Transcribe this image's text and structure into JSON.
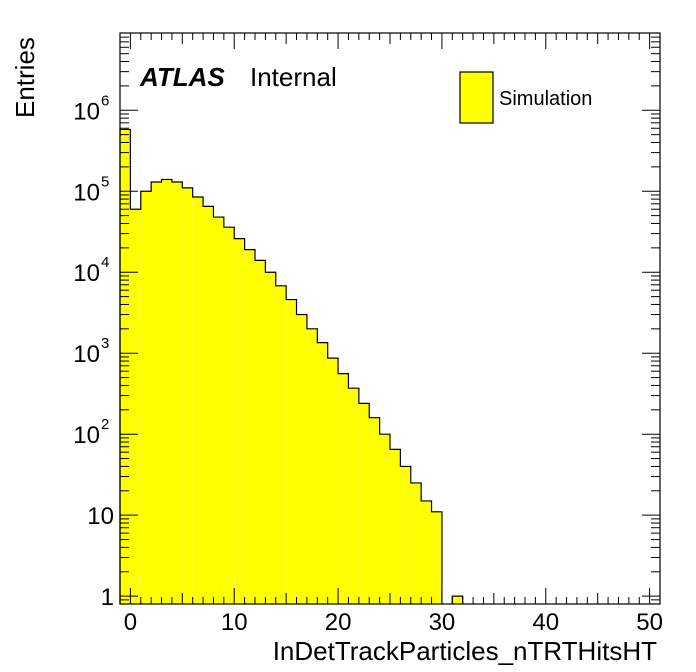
{
  "chart_data": {
    "type": "bar",
    "histogram": true,
    "log_y": true,
    "xlabel": "InDetTrackParticles_nTRTHitsHT",
    "ylabel": "Entries",
    "xlim": [
      -1,
      51
    ],
    "ylim": [
      0.8,
      9000000
    ],
    "x_ticks": [
      0,
      10,
      20,
      30,
      40,
      50
    ],
    "y_ticks": [
      {
        "value": 1,
        "label": "1"
      },
      {
        "value": 10,
        "label": "10"
      },
      {
        "value": 100,
        "label": "10",
        "exp": "2"
      },
      {
        "value": 1000,
        "label": "10",
        "exp": "3"
      },
      {
        "value": 10000,
        "label": "10",
        "exp": "4"
      },
      {
        "value": 100000,
        "label": "10",
        "exp": "5"
      },
      {
        "value": 1000000,
        "label": "10",
        "exp": "6"
      }
    ],
    "atlas_label": "ATLAS",
    "atlas_status": "Internal",
    "legend": {
      "position": "top-right",
      "entries": [
        {
          "label": "Simulation",
          "color": "#ffff00"
        }
      ]
    },
    "fill_color": "#ffff00",
    "line_color": "#000000",
    "bin_width": 1,
    "bins": [
      {
        "x": -0.5,
        "value": 580000
      },
      {
        "x": 0.5,
        "value": 60000
      },
      {
        "x": 1.5,
        "value": 100000
      },
      {
        "x": 2.5,
        "value": 130000
      },
      {
        "x": 3.5,
        "value": 140000
      },
      {
        "x": 4.5,
        "value": 130000
      },
      {
        "x": 5.5,
        "value": 110000
      },
      {
        "x": 6.5,
        "value": 85000
      },
      {
        "x": 7.5,
        "value": 65000
      },
      {
        "x": 8.5,
        "value": 48000
      },
      {
        "x": 9.5,
        "value": 36000
      },
      {
        "x": 10.5,
        "value": 26000
      },
      {
        "x": 11.5,
        "value": 19000
      },
      {
        "x": 12.5,
        "value": 14000
      },
      {
        "x": 13.5,
        "value": 10000
      },
      {
        "x": 14.5,
        "value": 6800
      },
      {
        "x": 15.5,
        "value": 4600
      },
      {
        "x": 16.5,
        "value": 3000
      },
      {
        "x": 17.5,
        "value": 2000
      },
      {
        "x": 18.5,
        "value": 1350
      },
      {
        "x": 19.5,
        "value": 870
      },
      {
        "x": 20.5,
        "value": 560
      },
      {
        "x": 21.5,
        "value": 370
      },
      {
        "x": 22.5,
        "value": 240
      },
      {
        "x": 23.5,
        "value": 160
      },
      {
        "x": 24.5,
        "value": 100
      },
      {
        "x": 25.5,
        "value": 65
      },
      {
        "x": 26.5,
        "value": 40
      },
      {
        "x": 27.5,
        "value": 25
      },
      {
        "x": 28.5,
        "value": 15
      },
      {
        "x": 29.5,
        "value": 11
      },
      {
        "x": 30.5,
        "value": 0
      },
      {
        "x": 31.5,
        "value": 1
      }
    ]
  }
}
